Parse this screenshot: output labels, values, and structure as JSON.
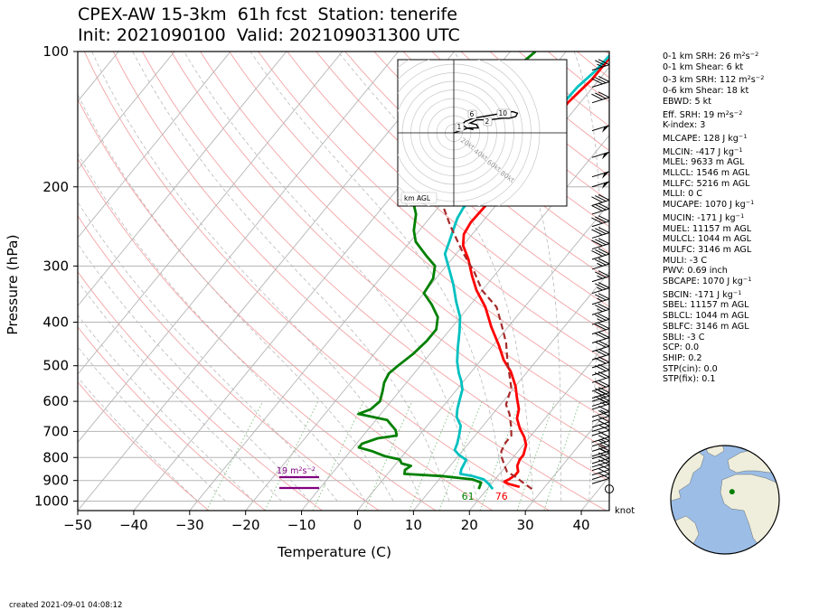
{
  "header": {
    "title_line1": "CPEX-AW 15-3km  61h fcst  Station: tenerife",
    "title_line2": "Init: 2021090100  Valid: 2021090313 00 UTC"
  },
  "footer": {
    "created": "created 2021-09-01 04:08:12"
  },
  "wind_unit": "knot",
  "params": [
    {
      "label": "0-1 km SRH: 26 m",
      "sup": "2",
      "post": "s",
      "sup2": "−2",
      "gap": false
    },
    {
      "label": "0-1 km Shear: 6 kt",
      "gap": false
    },
    {
      "label": "0-3 km SRH: 112 m",
      "sup": "2",
      "post": "s",
      "sup2": "−2",
      "gap": true
    },
    {
      "label": "0-6 km Shear: 18 kt",
      "gap": false
    },
    {
      "label": "EBWD: 5 kt",
      "gap": false
    },
    {
      "label": "Eff. SRH: 19 m",
      "sup": "2",
      "post": "s",
      "sup2": "−2",
      "gap": true
    },
    {
      "label": "K-index: 3",
      "gap": false
    },
    {
      "label": "MLCAPE: 128 J kg",
      "sup2": "−1",
      "gap": true
    },
    {
      "label": "MLCIN: -417 J kg",
      "sup2": "−1",
      "gap": true
    },
    {
      "label": "MLEL: 9633 m AGL",
      "gap": false
    },
    {
      "label": "MLLCL: 1546 m AGL",
      "gap": false
    },
    {
      "label": "MLLFC: 5216 m AGL",
      "gap": false
    },
    {
      "label": "MLLI: 0 C",
      "gap": false
    },
    {
      "label": "MUCAPE: 1070 J kg",
      "sup2": "−1",
      "gap": false
    },
    {
      "label": "MUCIN: -171 J kg",
      "sup2": "−1",
      "gap": true
    },
    {
      "label": "MUEL: 11157 m AGL",
      "gap": false
    },
    {
      "label": "MULCL: 1044 m AGL",
      "gap": false
    },
    {
      "label": "MULFC: 3146 m AGL",
      "gap": false
    },
    {
      "label": "MULI: -3 C",
      "gap": false
    },
    {
      "label": "PWV: 0.69 inch",
      "gap": false
    },
    {
      "label": "SBCAPE: 1070 J kg",
      "sup2": "−1",
      "gap": false
    },
    {
      "label": "SBCIN: -171 J kg",
      "sup2": "−1",
      "gap": true
    },
    {
      "label": "SBEL: 11157 m AGL",
      "gap": false
    },
    {
      "label": "SBLCL: 1044 m AGL",
      "gap": false
    },
    {
      "label": "SBLFC: 3146 m AGL",
      "gap": false
    },
    {
      "label": "SBLI: -3 C",
      "gap": false
    },
    {
      "label": "SCP: 0.0",
      "gap": false
    },
    {
      "label": "SHIP: 0.2",
      "gap": false
    },
    {
      "label": "STP(cin): 0.0",
      "gap": false
    },
    {
      "label": "STP(fix): 0.1",
      "gap": false
    }
  ],
  "chart_data": {
    "type": "line",
    "subtype": "skew-T log-p",
    "xlabel": "Temperature (C)",
    "ylabel": "Pressure (hPa)",
    "xlim": [
      -50,
      45
    ],
    "ylim": [
      1050,
      100
    ],
    "yscale": "log",
    "xticks": [
      -50,
      -40,
      -30,
      -20,
      -10,
      0,
      10,
      20,
      30,
      40
    ],
    "xtick_labels": [
      "−50",
      "−40",
      "−30",
      "−20",
      "−10",
      "0",
      "10",
      "20",
      "30",
      "40"
    ],
    "yticks": [
      100,
      200,
      300,
      400,
      500,
      600,
      700,
      800,
      900,
      1000
    ],
    "ytick_labels": [
      "100",
      "200",
      "300",
      "400",
      "500",
      "600",
      "700",
      "800",
      "900",
      "1000"
    ],
    "series": [
      {
        "color": "#ff0000",
        "points": [
          [
            25.5,
            930
          ],
          [
            23,
            915
          ],
          [
            22,
            905
          ],
          [
            22.5,
            895
          ],
          [
            23,
            875
          ],
          [
            23,
            860
          ],
          [
            22,
            835
          ],
          [
            21.5,
            808
          ],
          [
            21.5,
            790
          ],
          [
            20.5,
            750
          ],
          [
            19,
            720
          ],
          [
            17,
            690
          ],
          [
            15,
            655
          ],
          [
            14,
            625
          ],
          [
            12,
            590
          ],
          [
            10,
            555
          ],
          [
            7,
            515
          ],
          [
            4,
            485
          ],
          [
            1,
            450
          ],
          [
            -3,
            410
          ],
          [
            -7,
            370
          ],
          [
            -11,
            340
          ],
          [
            -14,
            315
          ],
          [
            -17,
            290
          ],
          [
            -20,
            270
          ],
          [
            -21.5,
            255
          ],
          [
            -22,
            240
          ],
          [
            -21.8,
            220
          ],
          [
            -21.5,
            205
          ],
          [
            -21.5,
            190
          ],
          [
            -21.3,
            175
          ],
          [
            -21.4,
            160
          ],
          [
            -21.8,
            145
          ],
          [
            -22.2,
            130
          ],
          [
            -21.3,
            115
          ],
          [
            -21.3,
            100
          ]
        ]
      },
      {
        "color": "#00c0c0",
        "points": [
          [
            21,
            940
          ],
          [
            19.5,
            915
          ],
          [
            18,
            895
          ],
          [
            15.5,
            880
          ],
          [
            13,
            870
          ],
          [
            12.5,
            850
          ],
          [
            12,
            810
          ],
          [
            10,
            790
          ],
          [
            8.5,
            770
          ],
          [
            8,
            745
          ],
          [
            7,
            710
          ],
          [
            6,
            680
          ],
          [
            4,
            650
          ],
          [
            3,
            625
          ],
          [
            2,
            595
          ],
          [
            1,
            565
          ],
          [
            -0.5,
            540
          ],
          [
            -2,
            520
          ],
          [
            -4,
            490
          ],
          [
            -6,
            455
          ],
          [
            -8,
            420
          ],
          [
            -10,
            390
          ],
          [
            -13,
            360
          ],
          [
            -16,
            330
          ],
          [
            -19,
            305
          ],
          [
            -22,
            282
          ],
          [
            -23,
            265
          ],
          [
            -24,
            250
          ],
          [
            -25,
            235
          ],
          [
            -25.5,
            222
          ],
          [
            -25,
            210
          ],
          [
            -24,
            200
          ],
          [
            -23,
            190
          ],
          [
            -22.5,
            175
          ],
          [
            -22.5,
            160
          ],
          [
            -22.5,
            145
          ],
          [
            -23,
            135
          ],
          [
            -22.8,
            120
          ],
          [
            -21.9,
            110
          ],
          [
            -21.6,
            100
          ]
        ]
      },
      {
        "color": "#008000",
        "points": [
          [
            18.5,
            940
          ],
          [
            18,
            910
          ],
          [
            16,
            895
          ],
          [
            10,
            880
          ],
          [
            3,
            870
          ],
          [
            2.5,
            852
          ],
          [
            3,
            835
          ],
          [
            1,
            825
          ],
          [
            0,
            808
          ],
          [
            -3,
            795
          ],
          [
            -6,
            775
          ],
          [
            -9,
            760
          ],
          [
            -9,
            745
          ],
          [
            -7,
            725
          ],
          [
            -4,
            715
          ],
          [
            -5,
            695
          ],
          [
            -8,
            660
          ],
          [
            -14,
            640
          ],
          [
            -12.5,
            625
          ],
          [
            -12,
            600
          ],
          [
            -13,
            570
          ],
          [
            -14,
            545
          ],
          [
            -14.5,
            520
          ],
          [
            -14,
            500
          ],
          [
            -13,
            470
          ],
          [
            -12.5,
            440
          ],
          [
            -12.5,
            415
          ],
          [
            -14,
            390
          ],
          [
            -17,
            365
          ],
          [
            -20,
            345
          ],
          [
            -20.5,
            320
          ],
          [
            -22,
            300
          ],
          [
            -25,
            285
          ],
          [
            -29,
            265
          ],
          [
            -31,
            250
          ],
          [
            -33,
            230
          ],
          [
            -36,
            212
          ],
          [
            -34.5,
            195
          ],
          [
            -35,
            180
          ],
          [
            -36,
            168
          ],
          [
            -37.5,
            155
          ],
          [
            -39,
            143
          ],
          [
            -39.5,
            130
          ],
          [
            -40,
            120
          ],
          [
            -38,
            112
          ],
          [
            -36,
            104
          ],
          [
            -35.5,
            100
          ]
        ]
      },
      {
        "color": "#a52a2a",
        "dashed": true,
        "points": [
          [
            28,
            940
          ],
          [
            25.5,
            910
          ],
          [
            23,
            880
          ],
          [
            21,
            860
          ],
          [
            19.5,
            830
          ],
          [
            18,
            800
          ],
          [
            17,
            775
          ],
          [
            16.5,
            740
          ],
          [
            16.5,
            715
          ],
          [
            15,
            680
          ],
          [
            13,
            640
          ],
          [
            11,
            610
          ],
          [
            9.5,
            560
          ],
          [
            7,
            520
          ],
          [
            5,
            490
          ],
          [
            2,
            445
          ],
          [
            -2,
            400
          ],
          [
            -5,
            370
          ],
          [
            -10,
            340
          ],
          [
            -14,
            310
          ],
          [
            -19,
            280
          ],
          [
            -25,
            245
          ],
          [
            -29.5,
            220
          ],
          [
            -33,
            200
          ],
          [
            -38,
            180
          ],
          [
            -43,
            160
          ],
          [
            -47,
            140
          ],
          [
            -50,
            125
          ],
          [
            -50.5,
            122
          ]
        ]
      }
    ],
    "surface_labels": [
      {
        "text": "61",
        "value_T": 18.5,
        "color": "#008000"
      },
      {
        "text": "76",
        "value_T": 24.5,
        "color": "#ff0000"
      }
    ],
    "srh_annotation": {
      "text": "19 m",
      "text_tail": "s",
      "color": "#800080"
    },
    "wind_barbs": {
      "color": "#000000",
      "pressure": [
        940,
        915,
        895,
        875,
        855,
        840,
        825,
        805,
        795,
        775,
        755,
        740,
        715,
        700,
        685,
        665,
        650,
        625,
        615,
        600,
        590,
        570,
        545,
        525,
        505,
        485,
        465,
        445,
        425,
        405,
        385,
        365,
        345,
        325,
        305,
        290,
        275,
        260,
        245,
        230,
        220,
        200,
        190,
        172,
        150,
        130,
        120,
        110
      ],
      "speed_kt": [
        0,
        10,
        10,
        10,
        10,
        10,
        10,
        10,
        15,
        15,
        15,
        10,
        10,
        10,
        10,
        10,
        15,
        15,
        20,
        20,
        20,
        20,
        20,
        20,
        20,
        20,
        20,
        20,
        20,
        25,
        25,
        25,
        25,
        25,
        25,
        30,
        30,
        30,
        30,
        30,
        30,
        50,
        50,
        50,
        50,
        30,
        30,
        25
      ]
    },
    "hodograph": {
      "box_label": "km AGL",
      "ring_labels": [
        "20kt",
        "40kt",
        "60kt",
        "80kt"
      ],
      "height_labels": [
        "1",
        "2",
        "6",
        "10"
      ],
      "rings_kt": [
        10,
        20,
        30,
        40,
        50,
        60,
        70,
        80,
        90,
        100
      ],
      "trace_uv_kt": [
        [
          0,
          0
        ],
        [
          3,
          1
        ],
        [
          6,
          2
        ],
        [
          9,
          3
        ],
        [
          12,
          3
        ],
        [
          15,
          3
        ],
        [
          14,
          5
        ],
        [
          10,
          6
        ],
        [
          14,
          8
        ],
        [
          22,
          8
        ],
        [
          30,
          9
        ],
        [
          34,
          9
        ],
        [
          38,
          10
        ],
        [
          39,
          12
        ],
        [
          36,
          13
        ],
        [
          30,
          12
        ],
        [
          24,
          11
        ],
        [
          18,
          10
        ],
        [
          12,
          9
        ],
        [
          7,
          7
        ],
        [
          5,
          5
        ],
        [
          8,
          3
        ],
        [
          12,
          2
        ]
      ]
    },
    "globe": {
      "marker_lat": 28.3,
      "marker_lon": -16.5
    }
  }
}
